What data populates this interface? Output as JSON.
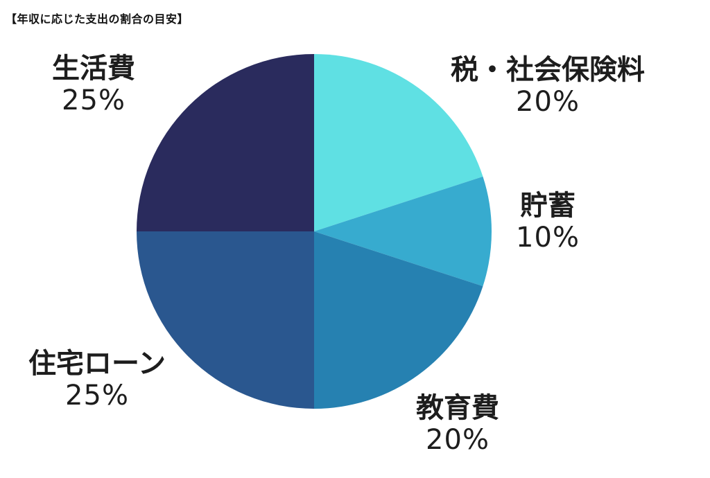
{
  "chart_data": {
    "type": "pie",
    "title": "【年収に応じた支出の割合の目安】",
    "slices": [
      {
        "label": "税・社会保険料",
        "value": 20,
        "percent_text": "20%",
        "color": "#5fe0e3"
      },
      {
        "label": "貯蓄",
        "value": 10,
        "percent_text": "10%",
        "color": "#37abcf"
      },
      {
        "label": "教育費",
        "value": 20,
        "percent_text": "20%",
        "color": "#2681b1"
      },
      {
        "label": "住宅ローン",
        "value": 25,
        "percent_text": "25%",
        "color": "#2a578f"
      },
      {
        "label": "生活費",
        "value": 25,
        "percent_text": "25%",
        "color": "#2a2b5d"
      }
    ],
    "start": "12 o'clock",
    "direction": "clockwise",
    "legend": "none"
  }
}
